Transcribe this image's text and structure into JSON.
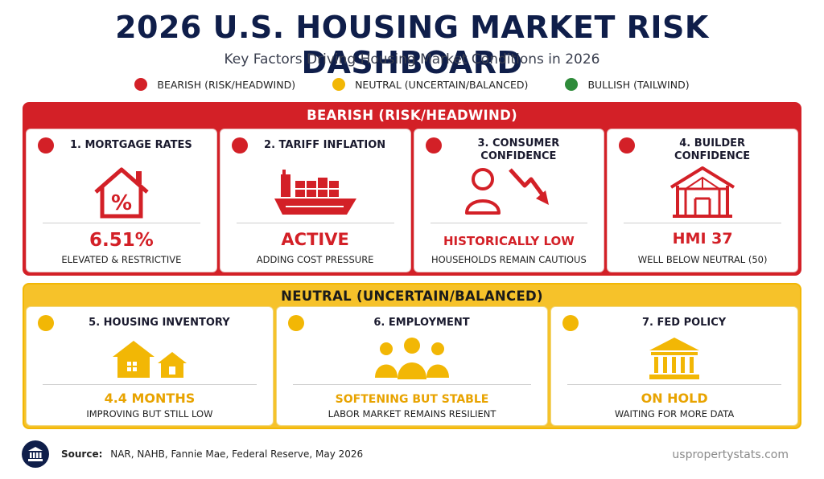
{
  "title": "2026 U.S. HOUSING MARKET RISK DASHBOARD",
  "subtitle": "Key Factors Driving Housing Market Conditions in 2026",
  "legend": [
    {
      "label": "BEARISH (RISK/HEADWIND)",
      "color": "#d32027"
    },
    {
      "label": "NEUTRAL (UNCERTAIN/BALANCED)",
      "color": "#f2b705"
    },
    {
      "label": "BULLISH (TAILWIND)",
      "color": "#2e8b3a"
    }
  ],
  "bearish": {
    "header": "BEARISH (RISK/HEADWIND)",
    "color": "#d32027",
    "cards": [
      {
        "title": "1. MORTGAGE RATES",
        "icon": "house-percent-icon",
        "value": "6.51%",
        "note": "ELEVATED & RESTRICTIVE"
      },
      {
        "title": "2. TARIFF INFLATION",
        "icon": "cargo-ship-icon",
        "value": "ACTIVE",
        "note": "ADDING COST PRESSURE"
      },
      {
        "title": "3. CONSUMER CONFIDENCE",
        "icon": "person-downtrend-icon",
        "value": "HISTORICALLY LOW",
        "note": "HOUSEHOLDS REMAIN CAUTIOUS"
      },
      {
        "title": "4. BUILDER CONFIDENCE",
        "icon": "house-frame-icon",
        "value": "HMI 37",
        "note": "WELL BELOW NEUTRAL (50)"
      }
    ]
  },
  "neutral": {
    "header": "NEUTRAL (UNCERTAIN/BALANCED)",
    "color": "#f2b705",
    "cards": [
      {
        "title": "5. HOUSING INVENTORY",
        "icon": "houses-icon",
        "value": "4.4 MONTHS",
        "note": "IMPROVING BUT STILL LOW"
      },
      {
        "title": "6. EMPLOYMENT",
        "icon": "people-group-icon",
        "value": "SOFTENING BUT STABLE",
        "note": "LABOR MARKET REMAINS RESILIENT"
      },
      {
        "title": "7. FED POLICY",
        "icon": "bank-building-icon",
        "value": "ON HOLD",
        "note": "WAITING FOR MORE DATA"
      }
    ]
  },
  "footer": {
    "source_label": "Source:",
    "source_text": "NAR, NAHB, Fannie Mae, Federal Reserve, May 2026",
    "site": "uspropertystats.com",
    "icon": "institution-icon"
  }
}
